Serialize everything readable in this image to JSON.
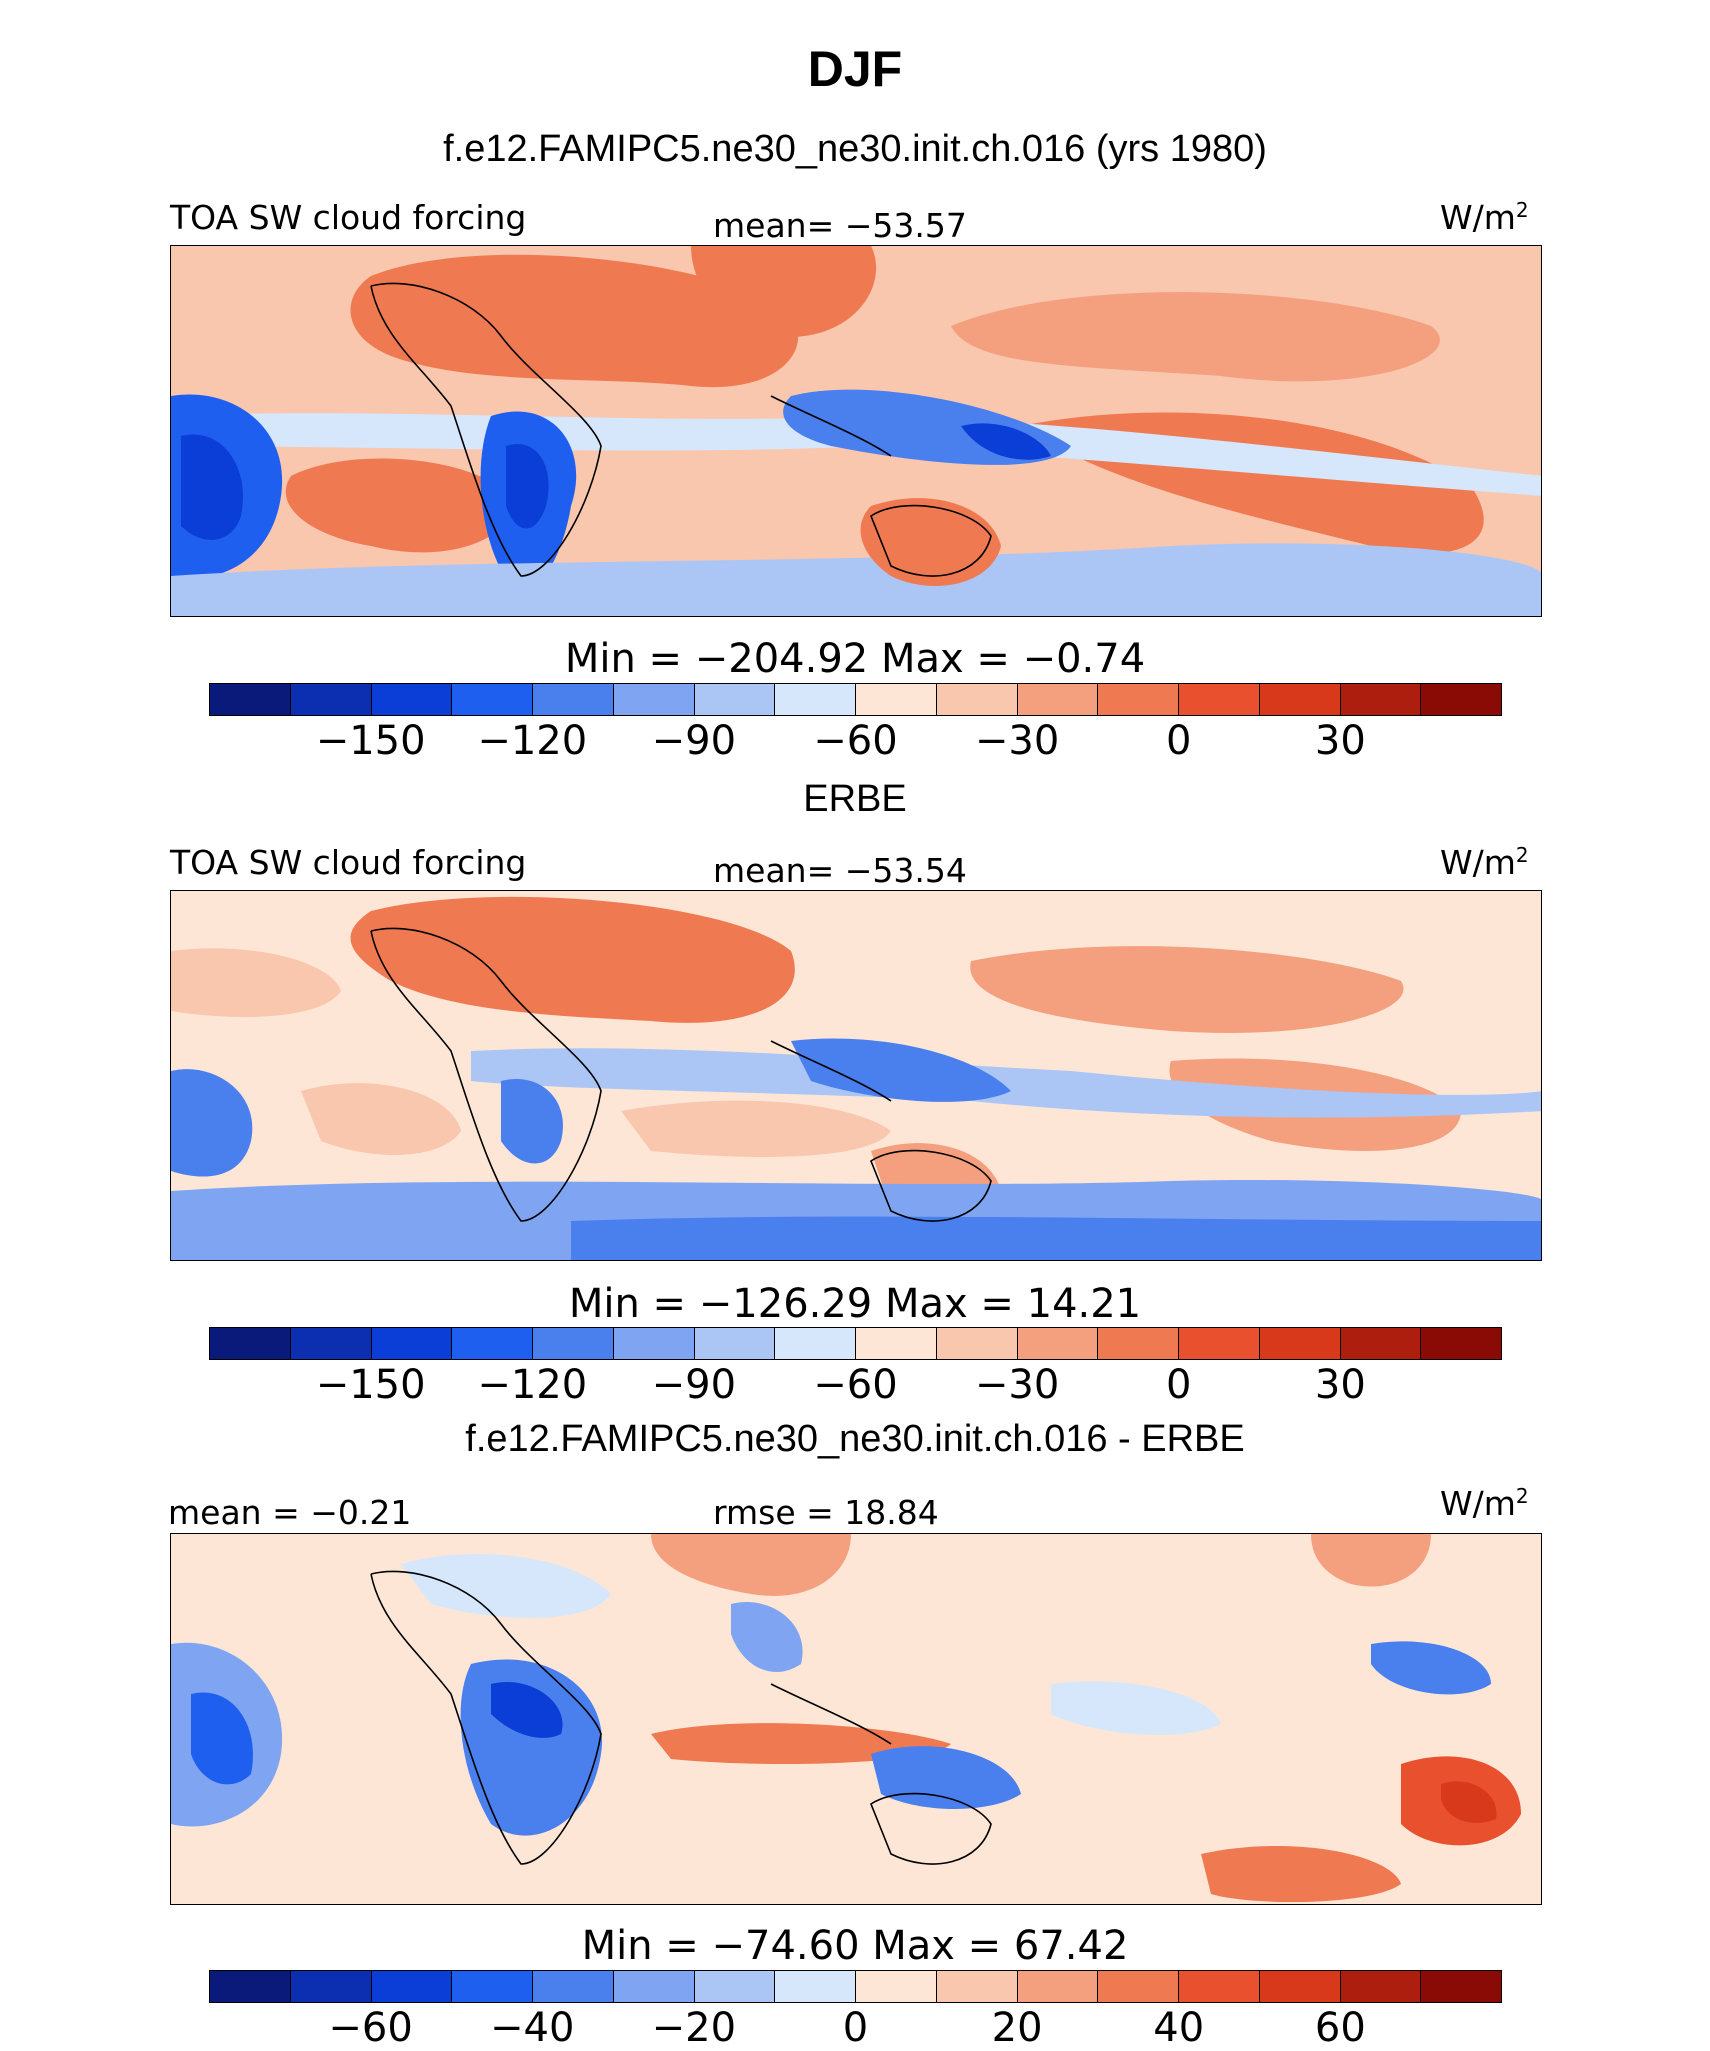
{
  "figure": {
    "season": "DJF"
  },
  "palette": {
    "abs": [
      "#0a1a7a",
      "#0b2fb0",
      "#0a3ed6",
      "#1e5ff0",
      "#4a7fee",
      "#7fa5f2",
      "#abc6f5",
      "#d6e6fb",
      "#fde6d6",
      "#f9c6ae",
      "#f4a07e",
      "#ef7a52",
      "#e9502e",
      "#d8391a",
      "#ad1e0f",
      "#8a0b06"
    ],
    "diff": [
      "#0a1a7a",
      "#0b2fb0",
      "#0a3ed6",
      "#1e5ff0",
      "#4a7fee",
      "#7fa5f2",
      "#abc6f5",
      "#d6e6fb",
      "#fde6d6",
      "#f9c6ae",
      "#f4a07e",
      "#ef7a52",
      "#e9502e",
      "#d8391a",
      "#ad1e0f",
      "#8a0b06"
    ]
  },
  "chart_data": [
    {
      "type": "heatmap",
      "title": "f.e12.FAMIPC5.ne30_ne30.init.ch.016 (yrs 1980)",
      "variable": "TOA SW cloud forcing",
      "units_prefix": "W/m",
      "units_exp": "2",
      "stat1": "mean=  −53.57",
      "stat2": "",
      "minmax": "Min  =  −204.92  Max  =    −0.74",
      "min": -204.92,
      "max": -0.74,
      "mean": -53.57,
      "palette": "abs",
      "colorbar": {
        "levels": [
          -165,
          -150,
          -135,
          -120,
          -105,
          -90,
          -75,
          -60,
          -45,
          -30,
          -15,
          0,
          15,
          30,
          45
        ],
        "tick_labels": [
          "−150",
          "−120",
          "−90",
          "−60",
          "−30",
          "0",
          "30"
        ],
        "tick_values": [
          -150,
          -120,
          -90,
          -60,
          -30,
          0,
          30
        ]
      },
      "x": [
        -90,
        -60,
        -30,
        0,
        30,
        60,
        90,
        120,
        150,
        180,
        210,
        240,
        270
      ],
      "y": [
        -40,
        -20,
        0,
        20,
        40
      ]
    },
    {
      "type": "heatmap",
      "title": "ERBE",
      "variable": "TOA SW cloud forcing",
      "units_prefix": "W/m",
      "units_exp": "2",
      "stat1": "mean=  −53.54",
      "stat2": "",
      "minmax": "Min  =  −126.29  Max  =    14.21",
      "min": -126.29,
      "max": 14.21,
      "mean": -53.54,
      "palette": "abs",
      "colorbar": {
        "levels": [
          -165,
          -150,
          -135,
          -120,
          -105,
          -90,
          -75,
          -60,
          -45,
          -30,
          -15,
          0,
          15,
          30,
          45
        ],
        "tick_labels": [
          "−150",
          "−120",
          "−90",
          "−60",
          "−30",
          "0",
          "30"
        ],
        "tick_values": [
          -150,
          -120,
          -90,
          -60,
          -30,
          0,
          30
        ]
      },
      "x": [
        -90,
        -60,
        -30,
        0,
        30,
        60,
        90,
        120,
        150,
        180,
        210,
        240,
        270
      ],
      "y": [
        -40,
        -20,
        0,
        20,
        40
      ]
    },
    {
      "type": "heatmap",
      "title": "f.e12.FAMIPC5.ne30_ne30.init.ch.016 - ERBE",
      "variable": "",
      "units_prefix": "W/m",
      "units_exp": "2",
      "stat1": "mean  =   −0.21",
      "stat2": "rmse  =    18.84",
      "minmax": "Min  =  −74.60  Max  =    67.42",
      "min": -74.6,
      "max": 67.42,
      "mean": -0.21,
      "rmse": 18.84,
      "palette": "diff",
      "colorbar": {
        "levels": [
          -70,
          -60,
          -50,
          -40,
          -30,
          -20,
          -10,
          0,
          10,
          20,
          30,
          40,
          50,
          60,
          70
        ],
        "tick_labels": [
          "−60",
          "−40",
          "−20",
          "0",
          "20",
          "40",
          "60"
        ],
        "tick_values": [
          -60,
          -40,
          -20,
          0,
          20,
          40,
          60
        ]
      },
      "x": [
        -90,
        -60,
        -30,
        0,
        30,
        60,
        90,
        120,
        150,
        180,
        210,
        240,
        270
      ],
      "y": [
        -40,
        -20,
        0,
        20,
        40
      ]
    }
  ]
}
